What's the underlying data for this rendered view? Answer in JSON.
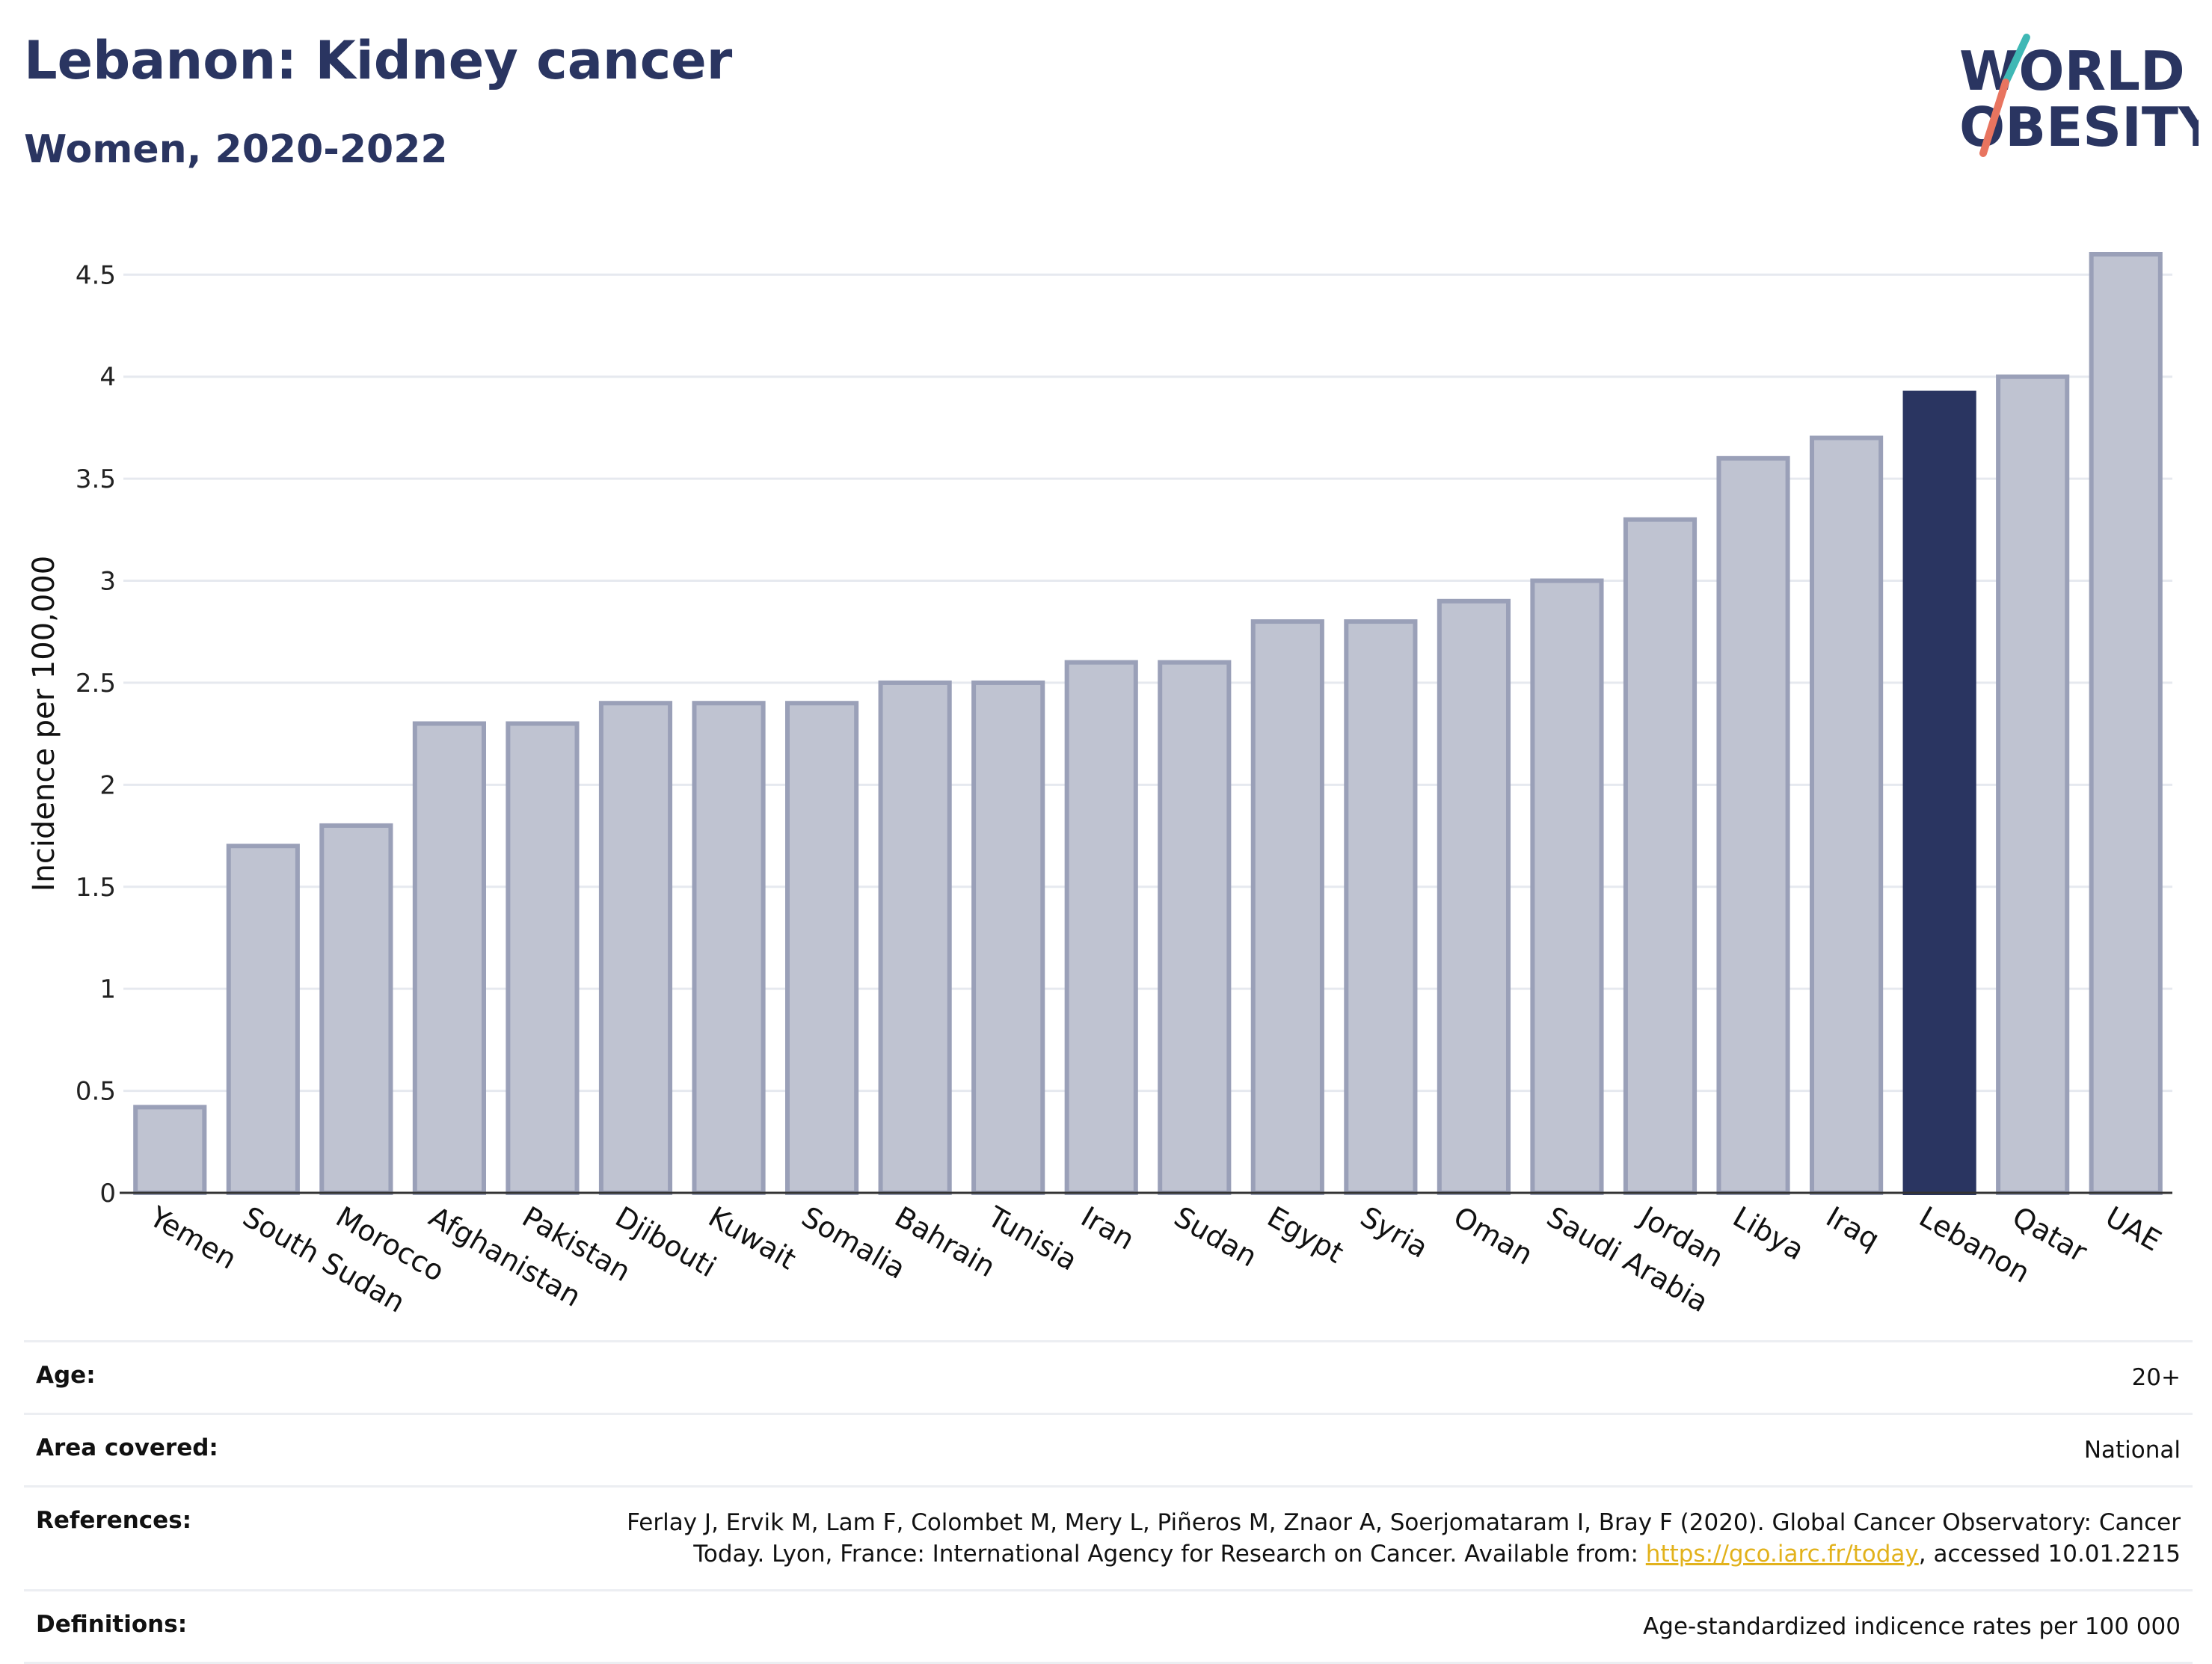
{
  "header": {
    "title": "Lebanon: Kidney cancer",
    "subtitle": "Women, 2020-2022"
  },
  "logo": {
    "line1": "WORLD",
    "line2": "OBESITY"
  },
  "colors": {
    "highlight": "#2a3561",
    "bar_fill": "#bfc3d1",
    "bar_stroke": "#9aa0b8",
    "grid": "#e6e9ef",
    "link": "#e2b21c"
  },
  "chart_data": {
    "type": "bar",
    "title": "Lebanon: Kidney cancer",
    "subtitle": "Women, 2020-2022",
    "xlabel": "",
    "ylabel": "Incidence per 100,000",
    "ylim": [
      0,
      4.6
    ],
    "yticks": [
      0,
      0.5,
      1,
      1.5,
      2,
      2.5,
      3,
      3.5,
      4,
      4.5
    ],
    "ytick_labels": [
      "0",
      "0.5",
      "1",
      "1.5",
      "2",
      "2.5",
      "3",
      "3.5",
      "4",
      "4.5"
    ],
    "grid": true,
    "highlight": "Lebanon",
    "categories": [
      "Yemen",
      "South Sudan",
      "Morocco",
      "Afghanistan",
      "Pakistan",
      "Djibouti",
      "Kuwait",
      "Somalia",
      "Bahrain",
      "Tunisia",
      "Iran",
      "Sudan",
      "Egypt",
      "Syria",
      "Oman",
      "Saudi Arabia",
      "Jordan",
      "Libya",
      "Iraq",
      "Lebanon",
      "Qatar",
      "UAE"
    ],
    "values": [
      0.42,
      1.7,
      1.8,
      2.3,
      2.3,
      2.4,
      2.4,
      2.4,
      2.5,
      2.5,
      2.6,
      2.6,
      2.8,
      2.8,
      2.9,
      3.0,
      3.3,
      3.6,
      3.7,
      3.92,
      4.0,
      4.6
    ]
  },
  "meta": {
    "age_label": "Age:",
    "age_value": "20+",
    "area_label": "Area covered:",
    "area_value": "National",
    "references_label": "References:",
    "references_text_1": "Ferlay J, Ervik M, Lam F, Colombet M, Mery L, Piñeros M, Znaor A, Soerjomataram I, Bray F (2020). Global Cancer Observatory: Cancer",
    "references_text_2": "Today. Lyon, France: International Agency for Research on Cancer. Available from: ",
    "references_link": "https://gco.iarc.fr/today",
    "references_text_3": ", accessed 10.01.2215",
    "definitions_label": "Definitions:",
    "definitions_value": "Age-standardized indicence rates per 100 000"
  }
}
